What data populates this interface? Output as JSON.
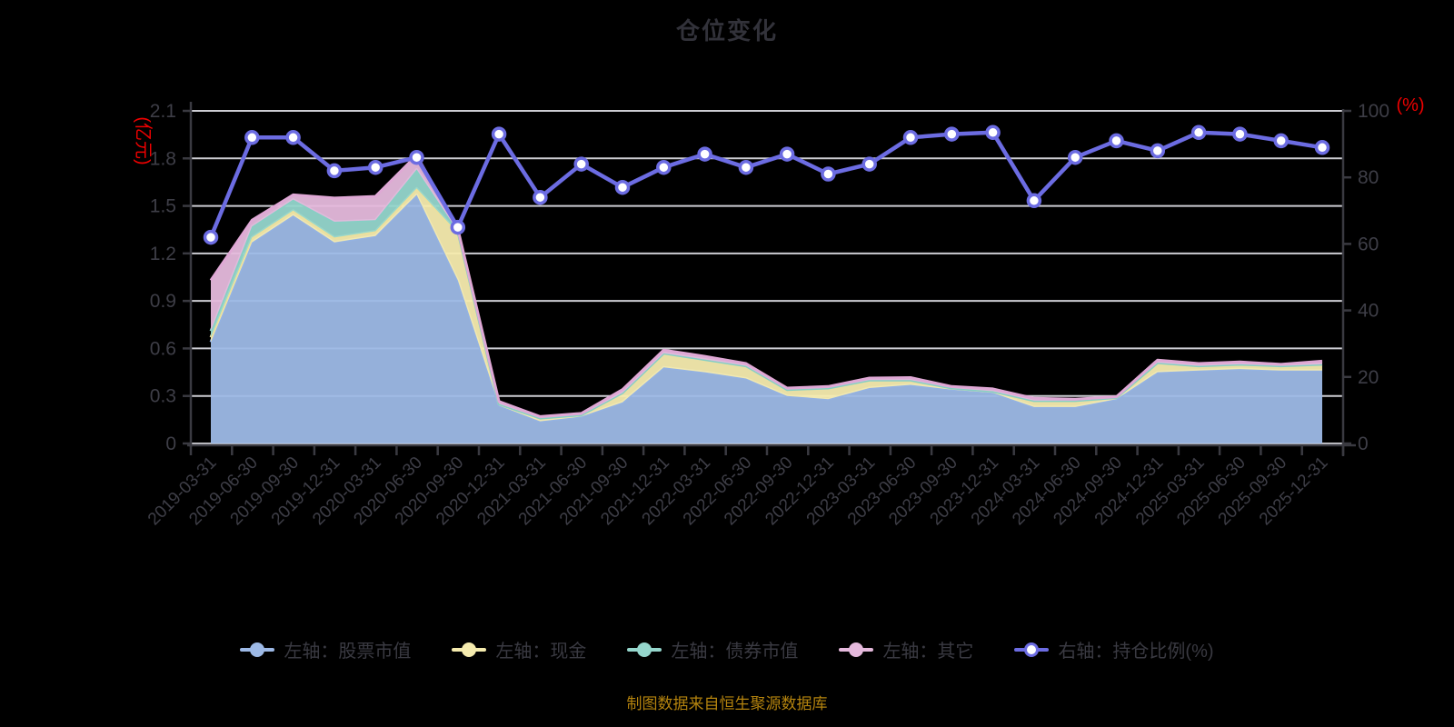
{
  "title": "仓位变化",
  "source_note": "制图数据来自恒生聚源数据库",
  "colors": {
    "background": "#000000",
    "title_text": "#32323a",
    "axis_text": "#3e3e47",
    "axis_line": "#3a3a41",
    "grid": "#cdcdd3",
    "axis_name_red": "#ee0000",
    "legend_text": "#3a3a42",
    "source_text": "#b4830e",
    "marker_fill": "#ffffff"
  },
  "chart_data": {
    "type": "area",
    "subtype": "stacked-area-with-line",
    "grid": true,
    "legend_position": "bottom",
    "categories": [
      "2019-03-31",
      "2019-06-30",
      "2019-09-30",
      "2019-12-31",
      "2020-03-31",
      "2020-06-30",
      "2020-09-30",
      "2020-12-31",
      "2021-03-31",
      "2021-06-30",
      "2021-09-30",
      "2021-12-31",
      "2022-03-31",
      "2022-06-30",
      "2022-09-30",
      "2022-12-31",
      "2023-03-31",
      "2023-06-30",
      "2023-09-30",
      "2023-12-31",
      "2024-03-31",
      "2024-06-30",
      "2024-09-30",
      "2024-12-31",
      "2025-03-31",
      "2025-06-30",
      "2025-09-30",
      "2025-12-31"
    ],
    "left_axis": {
      "name": "(亿元)",
      "min": 0,
      "max": 2.1,
      "ticks": [
        0,
        0.3,
        0.6,
        0.9,
        1.2,
        1.5,
        1.8,
        2.1
      ]
    },
    "right_axis": {
      "name": "(%)",
      "min": 0,
      "max": 100,
      "ticks": [
        0,
        20,
        40,
        60,
        80,
        100
      ]
    },
    "series": [
      {
        "name": "左轴：股票市值",
        "type": "area",
        "stack": true,
        "axis": "left",
        "color": "#9db9e6",
        "edge": "#94b2e2",
        "values": [
          0.64,
          1.27,
          1.44,
          1.27,
          1.31,
          1.57,
          1.03,
          0.24,
          0.14,
          0.17,
          0.26,
          0.48,
          0.45,
          0.41,
          0.3,
          0.28,
          0.35,
          0.37,
          0.34,
          0.32,
          0.23,
          0.23,
          0.28,
          0.45,
          0.46,
          0.47,
          0.46,
          0.46
        ]
      },
      {
        "name": "左轴：现金",
        "type": "area",
        "stack": true,
        "axis": "left",
        "color": "#f5ebae",
        "edge": "#eee09a",
        "values": [
          0.03,
          0.03,
          0.03,
          0.03,
          0.03,
          0.04,
          0.3,
          0.01,
          0.02,
          0.01,
          0.06,
          0.09,
          0.08,
          0.08,
          0.04,
          0.07,
          0.05,
          0.03,
          0.01,
          0.01,
          0.04,
          0.04,
          0.01,
          0.06,
          0.03,
          0.03,
          0.03,
          0.04
        ]
      },
      {
        "name": "左轴：债券市值",
        "type": "area",
        "stack": true,
        "axis": "left",
        "color": "#95d6cc",
        "edge": "#86cfc4",
        "values": [
          0.04,
          0.07,
          0.07,
          0.1,
          0.07,
          0.12,
          0.01,
          0,
          0,
          0,
          0,
          0,
          0,
          0,
          0,
          0,
          0,
          0,
          0,
          0,
          0,
          0,
          0,
          0,
          0,
          0,
          0,
          0
        ]
      },
      {
        "name": "左轴：其它",
        "type": "area",
        "stack": true,
        "axis": "left",
        "color": "#e5b9dc",
        "edge": "#dfa8d5",
        "values": [
          0.32,
          0.04,
          0.03,
          0.15,
          0.15,
          0.09,
          0.015,
          0.015,
          0.01,
          0.01,
          0.02,
          0.02,
          0.02,
          0.015,
          0.01,
          0.01,
          0.013,
          0.016,
          0.01,
          0.015,
          0.015,
          0.01,
          0.005,
          0.017,
          0.015,
          0.015,
          0.01,
          0.02
        ]
      },
      {
        "name": "右轴：持仓比例(%)",
        "type": "line",
        "stack": false,
        "axis": "right",
        "color": "#6c6ce2",
        "edge": "#6c6ce2",
        "values": [
          62,
          92,
          92,
          82,
          83,
          86,
          65,
          93,
          74,
          84,
          77,
          83,
          87,
          83,
          87,
          81,
          84,
          92,
          93,
          93.5,
          73,
          86,
          91,
          88,
          93.5,
          93,
          91,
          89
        ]
      }
    ]
  }
}
